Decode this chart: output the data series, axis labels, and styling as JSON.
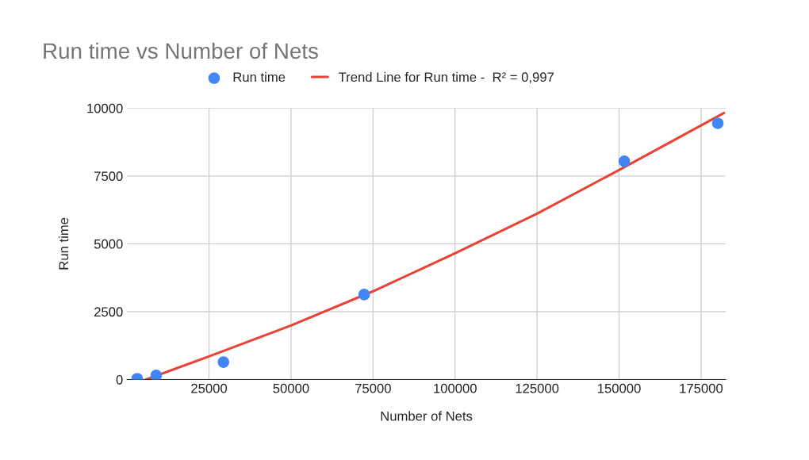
{
  "chart_data": {
    "type": "scatter",
    "title": "Run time vs Number of Nets",
    "xlabel": "Number of Nets",
    "ylabel": "Run time",
    "x": [
      3100,
      8900,
      29400,
      72300,
      151600,
      180100
    ],
    "series": [
      {
        "name": "Run time",
        "color": "#4285f4",
        "marker": "circle",
        "values": [
          30,
          150,
          640,
          3130,
          8040,
          9440
        ]
      },
      {
        "name": "Trend Line for Run time -  R² = 0,997",
        "type": "line",
        "color": "#ea4335",
        "x": [
          5800,
          25000,
          50000,
          75000,
          100000,
          125000,
          150000,
          182000
        ],
        "values": [
          0,
          850,
          1990,
          3250,
          4650,
          6110,
          7720,
          9820
        ]
      }
    ],
    "xlim": [
      0,
      182500
    ],
    "xticks": [
      25000,
      50000,
      75000,
      100000,
      125000,
      150000,
      175000
    ],
    "ylim": [
      0,
      10000
    ],
    "yticks": [
      0,
      2500,
      5000,
      7500,
      10000
    ],
    "grid": true,
    "legend": "top"
  }
}
